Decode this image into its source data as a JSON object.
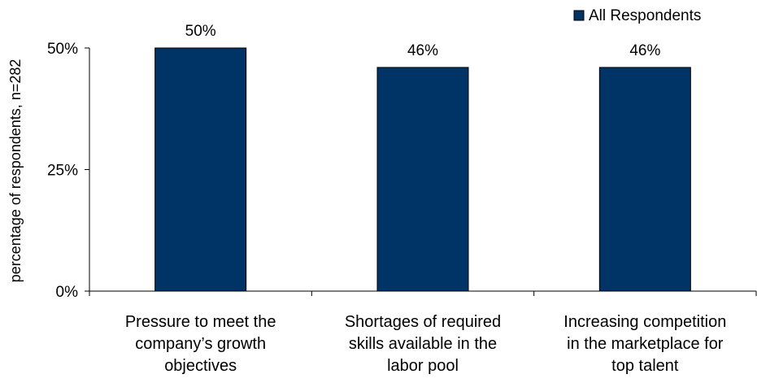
{
  "chart_data": {
    "type": "bar",
    "title": "",
    "xlabel": "",
    "ylabel": "percentage of respondents, n=282",
    "categories": [
      [
        "Pressure to meet the",
        "company’s growth",
        "objectives"
      ],
      [
        "Shortages of required",
        "skills available in the",
        "labor pool"
      ],
      [
        "Increasing competition",
        "in the marketplace for",
        "top talent"
      ]
    ],
    "series": [
      {
        "name": "All Respondents",
        "values": [
          50,
          46,
          46
        ],
        "color": "#003366"
      }
    ],
    "data_labels": [
      "50%",
      "46%",
      "46%"
    ],
    "ylim": [
      0,
      50
    ],
    "yticks": [
      0,
      25,
      50
    ],
    "ytick_labels": [
      "0%",
      "25%",
      "50%"
    ],
    "grid": false,
    "legend_position": "top-right"
  }
}
